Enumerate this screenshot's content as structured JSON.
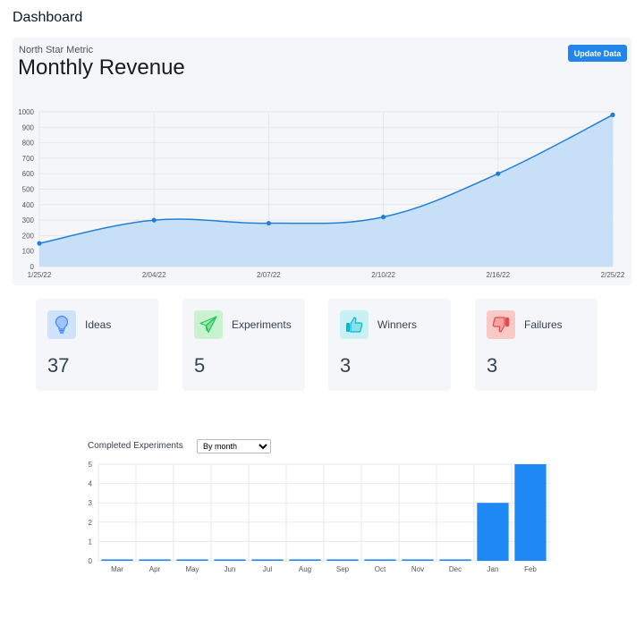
{
  "page": {
    "title": "Dashboard"
  },
  "revenue": {
    "subtitle": "North Star Metric",
    "title": "Monthly Revenue",
    "update_label": "Update Data"
  },
  "stats": [
    {
      "label": "Ideas",
      "value": "37",
      "icon": "lightbulb-icon",
      "color": "#3b82f6",
      "bg": "#cfe2fb"
    },
    {
      "label": "Experiments",
      "value": "5",
      "icon": "paper-plane-icon",
      "color": "#22c55e",
      "bg": "#c9f2cf"
    },
    {
      "label": "Winners",
      "value": "3",
      "icon": "thumbs-up-icon",
      "color": "#06b6d4",
      "bg": "#c7f1f3"
    },
    {
      "label": "Failures",
      "value": "3",
      "icon": "thumbs-down-icon",
      "color": "#ef4444",
      "bg": "#f8c9c7"
    }
  ],
  "experiments": {
    "label": "Completed Experiments",
    "select_value": "By month"
  },
  "chart_data": [
    {
      "type": "area",
      "x": [
        "1/25/22",
        "2/04/22",
        "2/07/22",
        "2/10/22",
        "2/16/22",
        "2/25/22"
      ],
      "y": [
        150,
        300,
        280,
        320,
        600,
        980
      ],
      "xticks": [
        "1/25/22",
        "2/04/22",
        "2/07/22",
        "2/10/22",
        "2/16/22",
        "2/25/22"
      ],
      "yticks": [
        "0",
        "100",
        "200",
        "300",
        "400",
        "500",
        "600",
        "700",
        "800",
        "900",
        "1000"
      ],
      "ylim": [
        0,
        1000
      ],
      "grid": true,
      "color": "#1f7fd8",
      "fill": "#c5def7"
    },
    {
      "type": "bar",
      "categories": [
        "Mar",
        "Apr",
        "May",
        "Jun",
        "Jul",
        "Aug",
        "Sep",
        "Oct",
        "Nov",
        "Dec",
        "Jan",
        "Feb"
      ],
      "values": [
        0,
        0,
        0,
        0,
        0,
        0,
        0,
        0,
        0,
        0,
        3,
        5
      ],
      "yticks": [
        "0",
        "1",
        "2",
        "3",
        "4",
        "5"
      ],
      "ylim": [
        0,
        5
      ],
      "grid": true,
      "color": "#1e88f5"
    }
  ]
}
